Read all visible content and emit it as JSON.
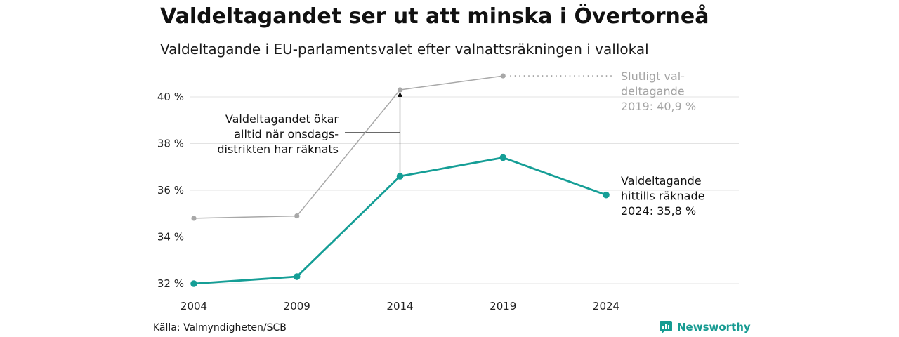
{
  "header": {
    "title": "Valdeltagandet ser ut att minska i Övertorneå",
    "subtitle": "Valdeltagande i EU-parlamentsvalet efter valnattsräkningen i vallokal"
  },
  "chart_data": {
    "type": "line",
    "categories": [
      "2004",
      "2009",
      "2014",
      "2019",
      "2024"
    ],
    "series": [
      {
        "name": "Slutligt valdeltagande",
        "color": "#a8a8a8",
        "values": [
          34.8,
          34.9,
          40.3,
          40.9,
          null
        ]
      },
      {
        "name": "Valdeltagande hittills räknade",
        "color": "#159e96",
        "values": [
          32.0,
          32.3,
          36.6,
          37.4,
          35.8
        ]
      }
    ],
    "ylim": [
      32,
      41
    ],
    "yticks": [
      32,
      34,
      36,
      38,
      40
    ],
    "ytick_labels": [
      "32 %",
      "34 %",
      "36 %",
      "38 %",
      "40 %"
    ],
    "grid": true,
    "annotations": {
      "final_label": [
        "Slutligt val-",
        "deltagande",
        "2019: 40,9 %"
      ],
      "current_label": [
        "Valdeltagande",
        "hittills räknade",
        "2024: 35,8 %"
      ],
      "note_label": [
        "Valdeltagandet ökar",
        "alltid när onsdags-",
        "distrikten har räknats"
      ]
    }
  },
  "footer": {
    "source": "Källa: Valmyndigheten/SCB",
    "brand": "Newsworthy",
    "brand_color": "#179b92"
  }
}
